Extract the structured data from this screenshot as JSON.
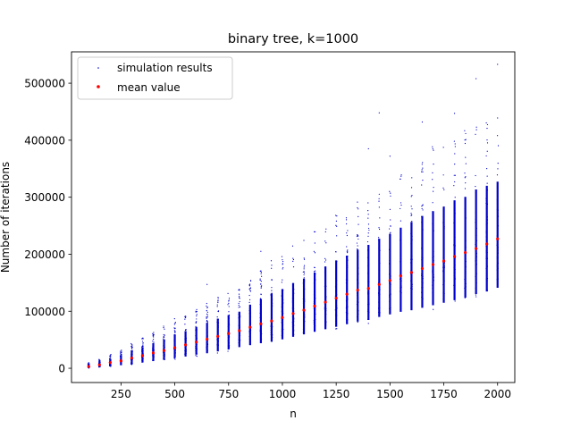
{
  "chart_data": {
    "type": "scatter",
    "title": "binary tree, k=1000",
    "xlabel": "n",
    "ylabel": "Number of iterations",
    "xlim": [
      20,
      2080
    ],
    "ylim": [
      -25000,
      555000
    ],
    "xticks": [
      250,
      500,
      750,
      1000,
      1250,
      1500,
      1750,
      2000
    ],
    "yticks": [
      0,
      100000,
      200000,
      300000,
      400000,
      500000
    ],
    "grid": false,
    "legend_position": "top-left",
    "colors": {
      "simulation": "#0000cc",
      "mean": "#ff0000"
    },
    "x": [
      100,
      150,
      200,
      250,
      300,
      350,
      400,
      450,
      500,
      550,
      600,
      650,
      700,
      750,
      800,
      850,
      900,
      950,
      1000,
      1050,
      1100,
      1150,
      1200,
      1250,
      1300,
      1350,
      1400,
      1450,
      1500,
      1550,
      1600,
      1650,
      1700,
      1750,
      1800,
      1850,
      1900,
      1950,
      2000
    ],
    "series": [
      {
        "name": "mean value",
        "marker": "dot",
        "values": [
          3000,
          6000,
          10000,
          13000,
          18000,
          22000,
          27000,
          31000,
          36000,
          41000,
          46000,
          51000,
          56000,
          61000,
          66000,
          72000,
          78000,
          83000,
          89000,
          96000,
          102000,
          109000,
          116000,
          123000,
          130000,
          137000,
          140000,
          147000,
          154000,
          162000,
          168000,
          175000,
          182000,
          188000,
          196000,
          203000,
          210000,
          218000,
          227000
        ]
      },
      {
        "name": "simulation results",
        "marker": "small-dot",
        "min": [
          0,
          1000,
          2000,
          4000,
          6000,
          8000,
          10000,
          12000,
          15000,
          17000,
          20000,
          22000,
          25000,
          28000,
          32000,
          35000,
          38000,
          40000,
          44000,
          48000,
          52000,
          56000,
          60000,
          64000,
          68000,
          72000,
          75000,
          80000,
          84000,
          88000,
          90000,
          94000,
          98000,
          102000,
          106000,
          110000,
          116000,
          120000,
          126000
        ],
        "max": [
          10000,
          17000,
          25000,
          35000,
          48000,
          55000,
          65000,
          75000,
          88000,
          95000,
          105000,
          115000,
          125000,
          133000,
          140000,
          160000,
          175000,
          190000,
          200000,
          215000,
          225000,
          240000,
          255000,
          270000,
          280000,
          295000,
          310000,
          325000,
          335000,
          350000,
          365000,
          380000,
          390000,
          400000,
          415000,
          420000,
          440000,
          445000,
          450000
        ],
        "outliers": [
          {
            "x": 650,
            "y": 147000
          },
          {
            "x": 900,
            "y": 205000
          },
          {
            "x": 1400,
            "y": 385000
          },
          {
            "x": 1450,
            "y": 448000
          },
          {
            "x": 1500,
            "y": 372000
          },
          {
            "x": 1650,
            "y": 432000
          },
          {
            "x": 1800,
            "y": 447000
          },
          {
            "x": 1900,
            "y": 508000
          },
          {
            "x": 2000,
            "y": 533000
          }
        ]
      }
    ]
  },
  "legend": {
    "simulation_label": "simulation results",
    "mean_label": "mean value"
  }
}
